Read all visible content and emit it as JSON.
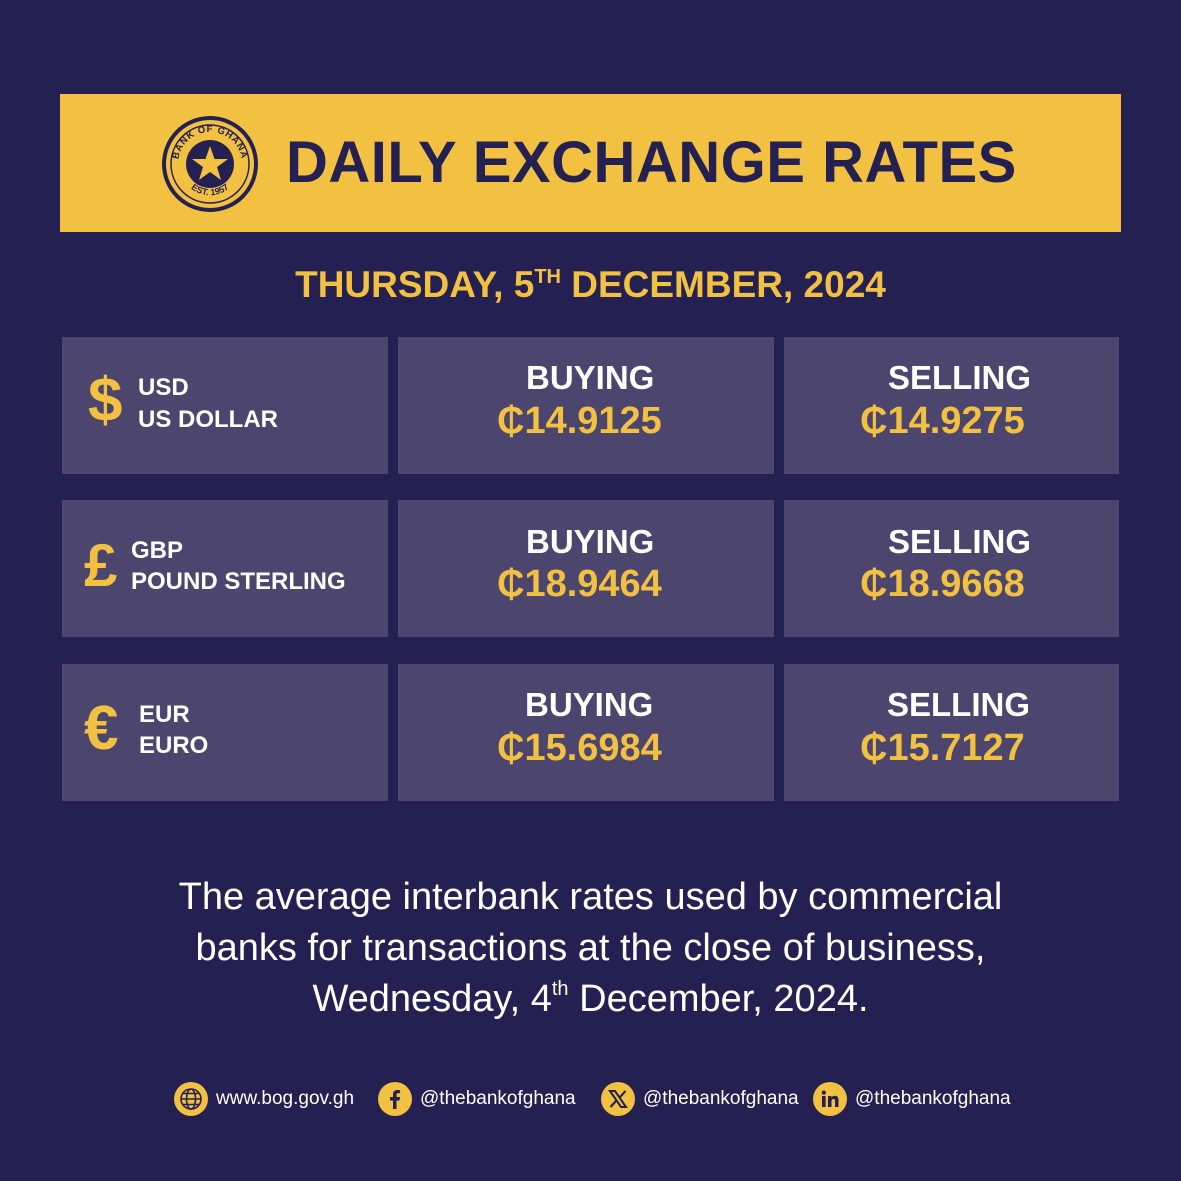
{
  "header": {
    "title": "DAILY EXCHANGE RATES",
    "seal_text_top": "BANK OF GHANA",
    "seal_text_bottom": "EST. 1957"
  },
  "date": {
    "weekday": "THURSDAY, 5",
    "ordinal": "TH",
    "rest": " DECEMBER, 2024"
  },
  "rates": [
    {
      "symbol": "$",
      "code": "USD",
      "name": "US DOLLAR",
      "buying_label": "BUYING",
      "buying": "₵14.9125",
      "selling_label": "SELLING",
      "selling": "₵14.9275"
    },
    {
      "symbol": "£",
      "code": "GBP",
      "name": "POUND STERLING",
      "buying_label": "BUYING",
      "buying": "₵18.9464",
      "selling_label": "SELLING",
      "selling": "₵18.9668"
    },
    {
      "symbol": "€",
      "code": "EUR",
      "name": "EURO",
      "buying_label": "BUYING",
      "buying": "₵15.6984",
      "selling_label": "SELLING",
      "selling": "₵15.7127"
    }
  ],
  "note": {
    "line1": "The average interbank rates used by commercial",
    "line2": "banks for transactions at the close of business,",
    "line3_a": "Wednesday, 4",
    "line3_sup": "th",
    "line3_b": " December, 2024."
  },
  "footer": {
    "website": "www.bog.gov.gh",
    "facebook": "@thebankofghana",
    "x": "@thebankofghana",
    "linkedin": "@thebankofghana",
    "icons": [
      "globe-icon",
      "facebook-icon",
      "x-icon",
      "linkedin-icon"
    ]
  },
  "colors": {
    "background": "#242052",
    "accent": "#f3c141",
    "cell": "#4c456e",
    "text": "#ffffff"
  }
}
